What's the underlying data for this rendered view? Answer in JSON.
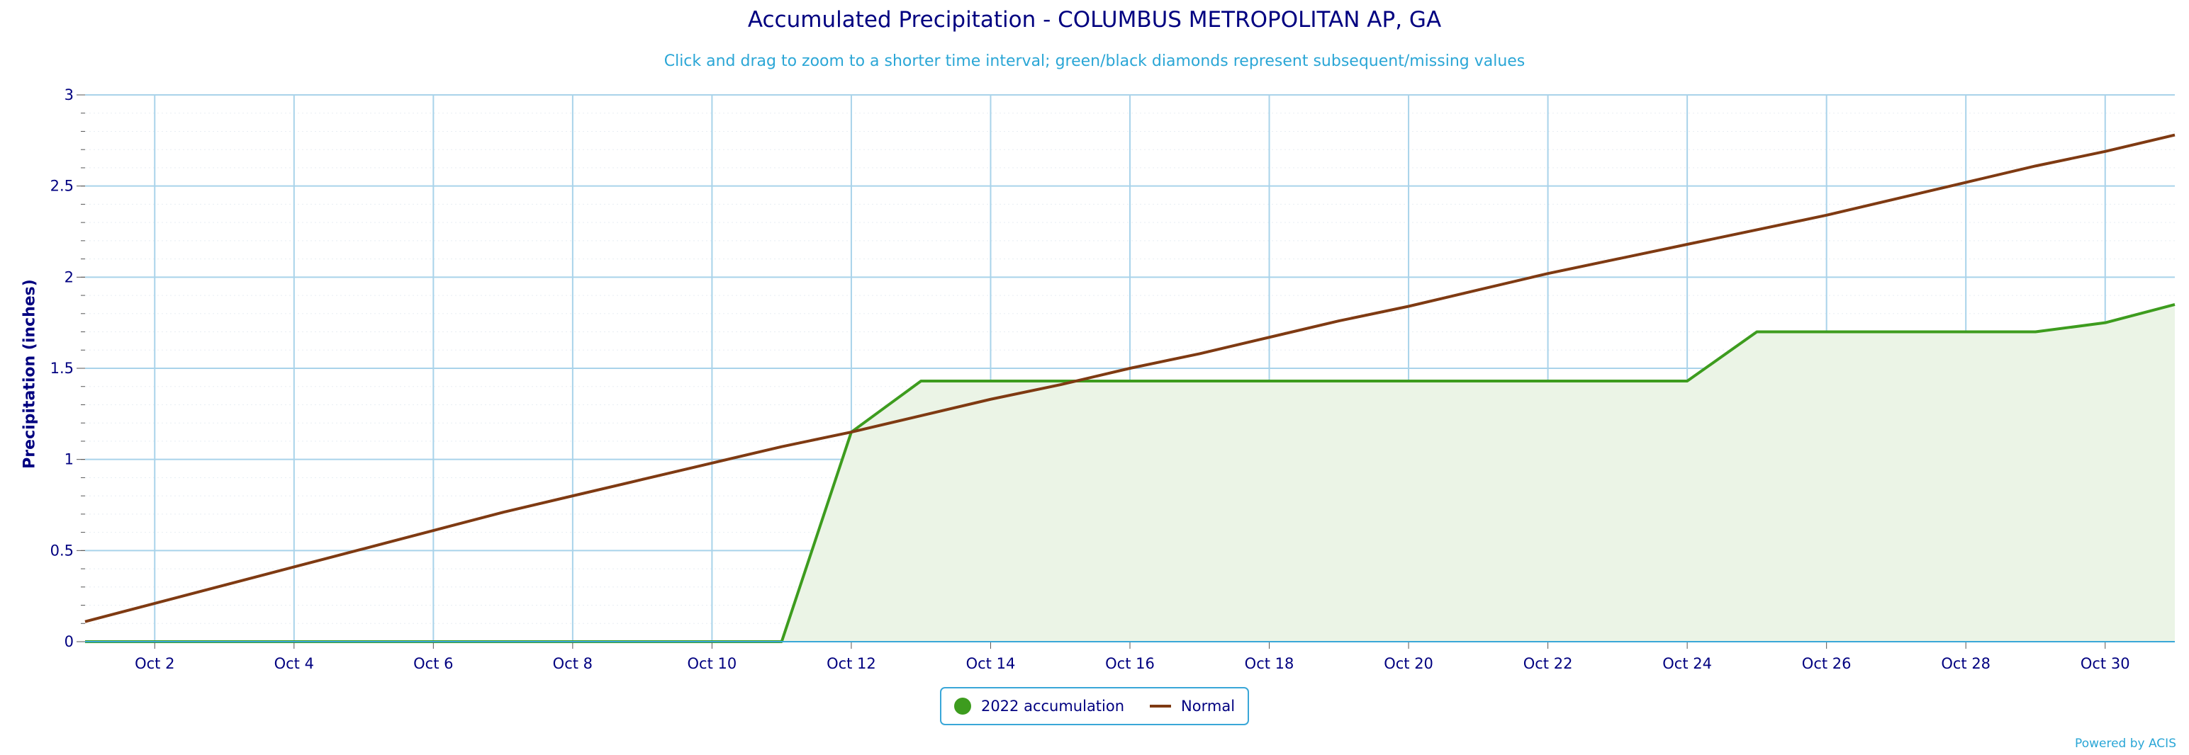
{
  "chart_data": {
    "type": "area",
    "title": "Accumulated Precipitation - COLUMBUS METROPOLITAN AP, GA",
    "subtitle": "Click and drag to zoom to a shorter time interval; green/black diamonds represent subsequent/missing values",
    "ylabel": "Precipitation (inches)",
    "xlabel": "",
    "ylim": [
      0,
      3
    ],
    "yticks": [
      "0",
      "0.5",
      "1",
      "1.5",
      "2",
      "2.5",
      "3"
    ],
    "xticks": [
      "Oct 2",
      "Oct 4",
      "Oct 6",
      "Oct 8",
      "Oct 10",
      "Oct 12",
      "Oct 14",
      "Oct 16",
      "Oct 18",
      "Oct 20",
      "Oct 22",
      "Oct 24",
      "Oct 26",
      "Oct 28",
      "Oct 30"
    ],
    "x": [
      "Oct 1",
      "Oct 2",
      "Oct 3",
      "Oct 4",
      "Oct 5",
      "Oct 6",
      "Oct 7",
      "Oct 8",
      "Oct 9",
      "Oct 10",
      "Oct 11",
      "Oct 12",
      "Oct 13",
      "Oct 14",
      "Oct 15",
      "Oct 16",
      "Oct 17",
      "Oct 18",
      "Oct 19",
      "Oct 20",
      "Oct 21",
      "Oct 22",
      "Oct 23",
      "Oct 24",
      "Oct 25",
      "Oct 26",
      "Oct 27",
      "Oct 28",
      "Oct 29",
      "Oct 30",
      "Oct 31"
    ],
    "grid": true,
    "legend_position": "bottom-center",
    "series": [
      {
        "name": "2022 accumulation",
        "color": "#3d9c1e",
        "fill": "#ebf4e6",
        "values": [
          0,
          0,
          0,
          0,
          0,
          0,
          0,
          0,
          0,
          0,
          0,
          1.15,
          1.43,
          1.43,
          1.43,
          1.43,
          1.43,
          1.43,
          1.43,
          1.43,
          1.43,
          1.43,
          1.43,
          1.43,
          1.7,
          1.7,
          1.7,
          1.7,
          1.7,
          1.75,
          1.85
        ]
      },
      {
        "name": "Normal",
        "color": "#7f3a12",
        "values": [
          0.11,
          0.21,
          0.31,
          0.41,
          0.51,
          0.61,
          0.71,
          0.8,
          0.89,
          0.98,
          1.07,
          1.15,
          1.24,
          1.33,
          1.41,
          1.5,
          1.58,
          1.67,
          1.76,
          1.84,
          1.93,
          2.02,
          2.1,
          2.18,
          2.26,
          2.34,
          2.43,
          2.52,
          2.61,
          2.69,
          2.78
        ]
      }
    ]
  },
  "credit": "Powered by ACIS"
}
